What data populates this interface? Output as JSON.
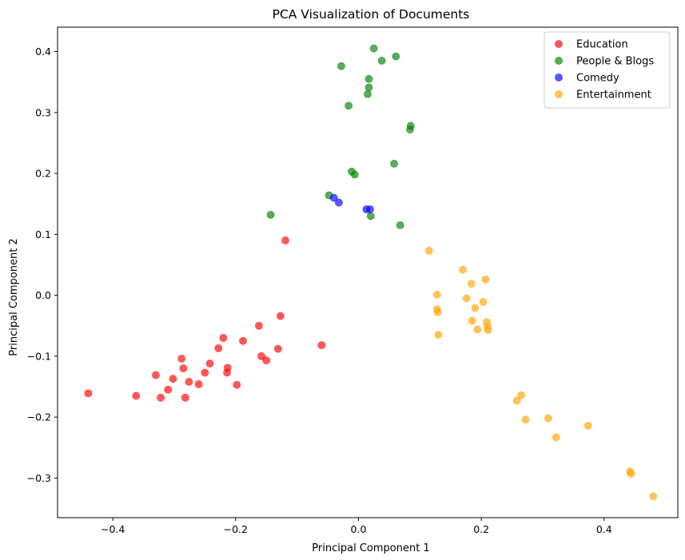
{
  "chart_data": {
    "type": "scatter",
    "title": "PCA Visualization of Documents",
    "xlabel": "Principal Component 1",
    "ylabel": "Principal Component 2",
    "xlim": [
      -0.49,
      0.52
    ],
    "ylim": [
      -0.365,
      0.44
    ],
    "xticks": [
      -0.4,
      -0.2,
      0.0,
      0.2,
      0.4
    ],
    "yticks": [
      -0.3,
      -0.2,
      -0.1,
      0.0,
      0.1,
      0.2,
      0.3,
      0.4
    ],
    "grid": false,
    "legend_position": "top-right",
    "marker_alpha": 0.65,
    "series": [
      {
        "name": "Education",
        "color": "#ff0000",
        "points": [
          [
            -0.44,
            -0.161
          ],
          [
            -0.362,
            -0.165
          ],
          [
            -0.33,
            -0.131
          ],
          [
            -0.322,
            -0.168
          ],
          [
            -0.31,
            -0.155
          ],
          [
            -0.302,
            -0.137
          ],
          [
            -0.288,
            -0.104
          ],
          [
            -0.285,
            -0.12
          ],
          [
            -0.282,
            -0.168
          ],
          [
            -0.276,
            -0.142
          ],
          [
            -0.26,
            -0.146
          ],
          [
            -0.25,
            -0.127
          ],
          [
            -0.242,
            -0.112
          ],
          [
            -0.228,
            -0.087
          ],
          [
            -0.22,
            -0.07
          ],
          [
            -0.214,
            -0.127
          ],
          [
            -0.213,
            -0.119
          ],
          [
            -0.198,
            -0.147
          ],
          [
            -0.188,
            -0.075
          ],
          [
            -0.162,
            -0.05
          ],
          [
            -0.158,
            -0.1
          ],
          [
            -0.15,
            -0.107
          ],
          [
            -0.131,
            -0.088
          ],
          [
            -0.127,
            -0.034
          ],
          [
            -0.119,
            0.09
          ],
          [
            -0.06,
            -0.082
          ]
        ]
      },
      {
        "name": "People & Blogs",
        "color": "#008000",
        "points": [
          [
            -0.143,
            0.132
          ],
          [
            -0.048,
            0.164
          ],
          [
            -0.028,
            0.376
          ],
          [
            -0.016,
            0.311
          ],
          [
            -0.011,
            0.203
          ],
          [
            -0.006,
            0.198
          ],
          [
            0.015,
            0.33
          ],
          [
            0.017,
            0.341
          ],
          [
            0.017,
            0.355
          ],
          [
            0.02,
            0.13
          ],
          [
            0.025,
            0.405
          ],
          [
            0.038,
            0.385
          ],
          [
            0.058,
            0.216
          ],
          [
            0.061,
            0.392
          ],
          [
            0.068,
            0.115
          ],
          [
            0.084,
            0.272
          ],
          [
            0.085,
            0.278
          ]
        ]
      },
      {
        "name": "Comedy",
        "color": "#0000ff",
        "points": [
          [
            -0.04,
            0.16
          ],
          [
            -0.032,
            0.152
          ],
          [
            0.013,
            0.141
          ],
          [
            0.019,
            0.141
          ]
        ]
      },
      {
        "name": "Entertainment",
        "color": "#ffa500",
        "points": [
          [
            0.115,
            0.073
          ],
          [
            0.128,
            -0.023
          ],
          [
            0.128,
            0.001
          ],
          [
            0.129,
            -0.028
          ],
          [
            0.13,
            -0.065
          ],
          [
            0.17,
            0.042
          ],
          [
            0.176,
            -0.005
          ],
          [
            0.184,
            0.019
          ],
          [
            0.185,
            -0.042
          ],
          [
            0.19,
            -0.021
          ],
          [
            0.194,
            -0.056
          ],
          [
            0.203,
            -0.011
          ],
          [
            0.207,
            0.026
          ],
          [
            0.209,
            -0.044
          ],
          [
            0.21,
            -0.051
          ],
          [
            0.211,
            -0.057
          ],
          [
            0.258,
            -0.173
          ],
          [
            0.265,
            -0.164
          ],
          [
            0.272,
            -0.204
          ],
          [
            0.309,
            -0.202
          ],
          [
            0.322,
            -0.233
          ],
          [
            0.374,
            -0.214
          ],
          [
            0.442,
            -0.289
          ],
          [
            0.444,
            -0.293
          ],
          [
            0.48,
            -0.33
          ]
        ]
      }
    ]
  }
}
